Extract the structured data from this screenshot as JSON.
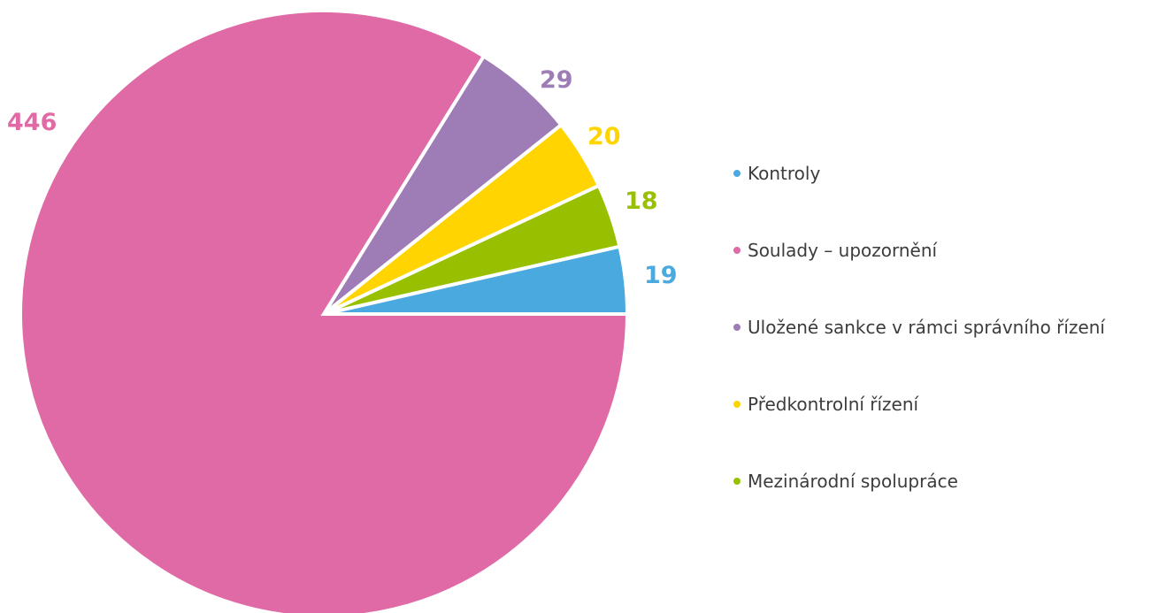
{
  "chart_data": {
    "type": "pie",
    "title": "",
    "categories": [
      "Kontroly",
      "Soulady – upozornění",
      "Uložené sankce v rámci správního řízení",
      "Předkontrolní řízení",
      "Mezinárodní spolupráce"
    ],
    "values": [
      19,
      446,
      29,
      20,
      18
    ],
    "value_labels": [
      "19",
      "446",
      "29",
      "20",
      "18"
    ],
    "colors": [
      "#4aa9de",
      "#e06aa5",
      "#9e7cb5",
      "#ffd400",
      "#99c000"
    ],
    "legend_position": "right",
    "start_angle": "3 o'clock",
    "direction": "counterclockwise"
  }
}
